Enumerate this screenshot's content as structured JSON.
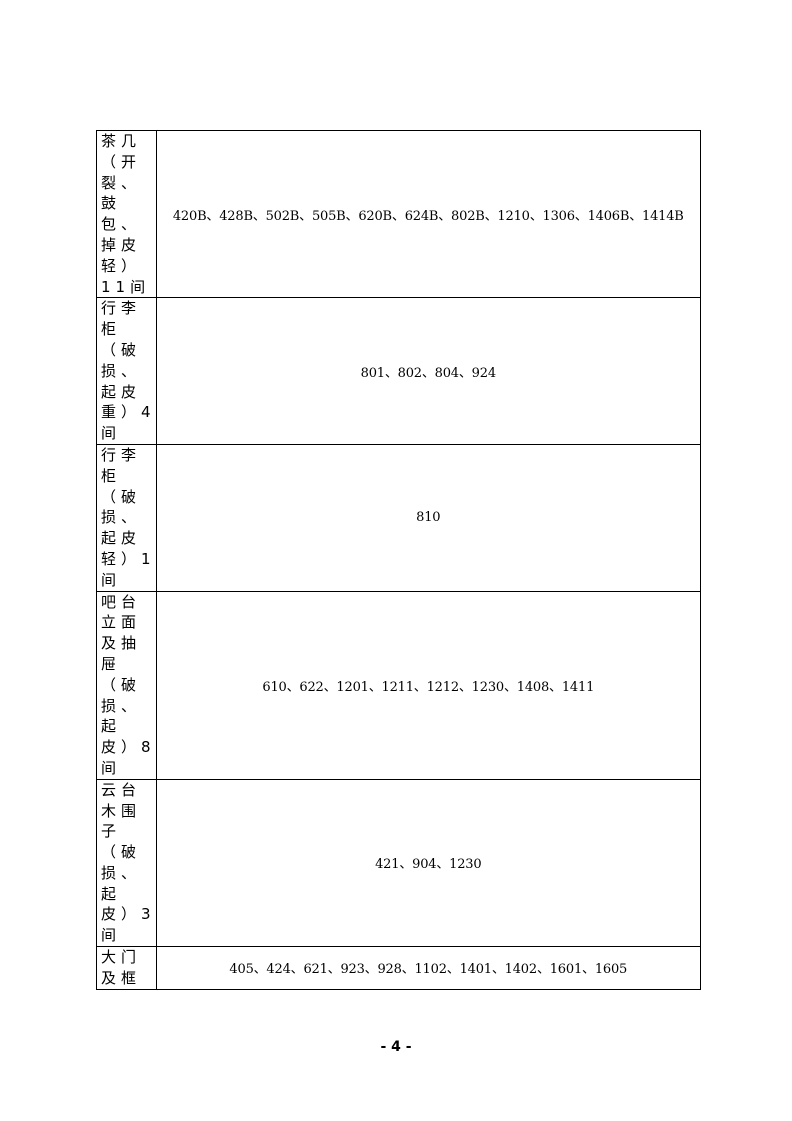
{
  "rows": [
    {
      "label_lines": [
        "茶几",
        "（开",
        "裂、",
        "鼓",
        "包、",
        "掉皮",
        "轻）",
        "11间"
      ],
      "rooms": "420B、428B、502B、505B、620B、624B、802B、1210、1306、1406B、1414B",
      "height": 0
    },
    {
      "label_lines": [
        "行李",
        "柜",
        "（破",
        "损、",
        "起皮",
        "重）4",
        "间"
      ],
      "rooms": "801、802、804、924"
    },
    {
      "label_lines": [
        "行李",
        "柜",
        "（破",
        "损、",
        "起皮",
        "轻）1",
        "间"
      ],
      "rooms": "810"
    },
    {
      "label_lines": [
        "吧台",
        "立面",
        "及抽",
        "屉",
        "（破",
        "损、",
        "起",
        "皮）8",
        "间"
      ],
      "rooms": "610、622、1201、1211、1212、1230、1408、1411"
    },
    {
      "label_lines": [
        "云台",
        "木围",
        "子",
        "（破",
        "损、",
        "起",
        "皮）3",
        "间"
      ],
      "rooms": "421、904、1230"
    },
    {
      "label_lines": [
        "大门",
        "及框"
      ],
      "rooms": "405、424、621、923、928、1102、1401、1402、1601、1605"
    }
  ],
  "page_number": "- 4 -"
}
